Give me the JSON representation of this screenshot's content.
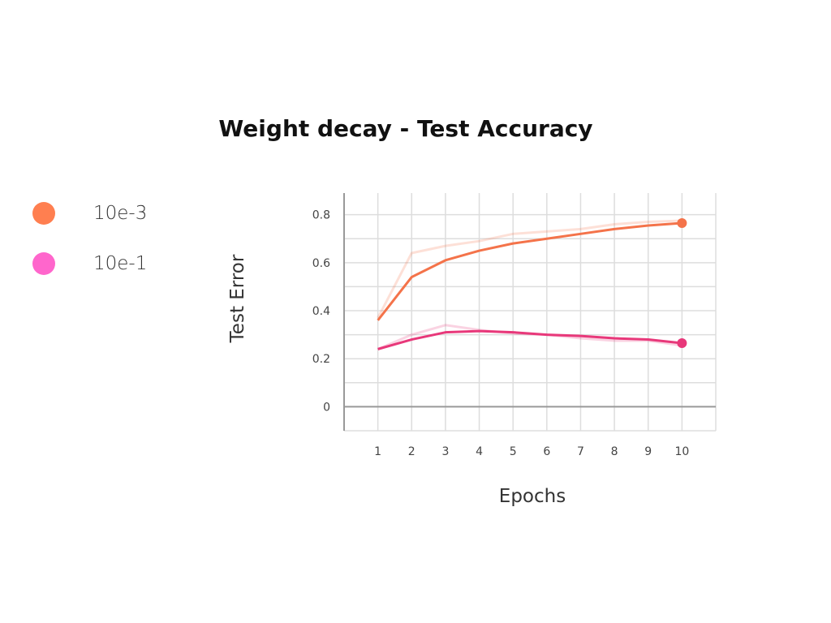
{
  "chart_data": {
    "type": "line",
    "title": "Weight decay - Test Accuracy",
    "xlabel": "Epochs",
    "ylabel": "Test Error",
    "x": [
      1,
      2,
      3,
      4,
      5,
      6,
      7,
      8,
      9,
      10
    ],
    "xticks": [
      "1",
      "2",
      "3",
      "4",
      "5",
      "6",
      "7",
      "8",
      "9",
      "10"
    ],
    "yticks": [
      "0",
      "0.2",
      "0.4",
      "0.6",
      "0.8"
    ],
    "xlim": [
      0,
      11
    ],
    "ylim": [
      -0.1,
      0.89
    ],
    "grid": true,
    "legend_position": "left",
    "series": [
      {
        "name": "10e-3",
        "color": "#f4734a",
        "legend_color": "#ff7f50",
        "values": [
          0.36,
          0.54,
          0.61,
          0.65,
          0.68,
          0.7,
          0.72,
          0.74,
          0.755,
          0.765
        ],
        "raw_values": [
          0.37,
          0.64,
          0.67,
          0.69,
          0.72,
          0.73,
          0.74,
          0.76,
          0.77,
          0.775
        ]
      },
      {
        "name": "10e-1",
        "color": "#e8387a",
        "legend_color": "#ff66cc",
        "values": [
          0.24,
          0.28,
          0.31,
          0.315,
          0.31,
          0.3,
          0.295,
          0.285,
          0.28,
          0.265
        ],
        "raw_values": [
          0.24,
          0.3,
          0.34,
          0.32,
          0.305,
          0.3,
          0.285,
          0.275,
          0.275,
          0.255
        ]
      }
    ]
  }
}
